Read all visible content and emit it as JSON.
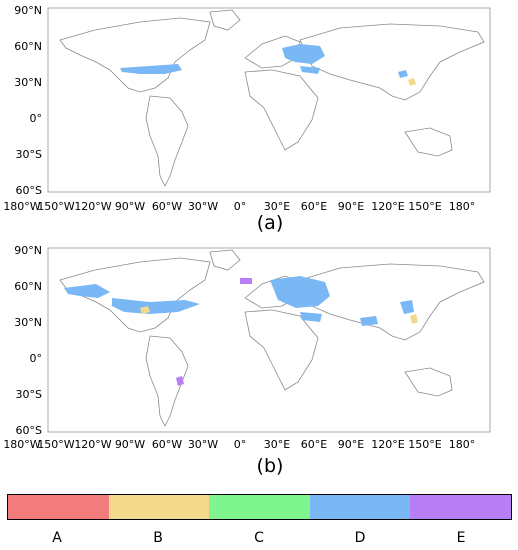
{
  "panels": [
    {
      "label": "(a)",
      "lat_ticks": [
        "90°N",
        "60°N",
        "30°N",
        "0°",
        "30°S",
        "60°S"
      ],
      "lon_ticks": [
        "180°W",
        "150°W",
        "120°W",
        "90°W",
        "60°W",
        "30°W",
        "0°",
        "30°E",
        "60°E",
        "90°E",
        "120°E",
        "150°E",
        "180°"
      ]
    },
    {
      "label": "(b)",
      "lat_ticks": [
        "90°N",
        "60°N",
        "30°N",
        "0°",
        "30°S",
        "60°S"
      ],
      "lon_ticks": [
        "180°W",
        "150°W",
        "120°W",
        "90°W",
        "60°W",
        "30°W",
        "0°",
        "30°E",
        "60°E",
        "90°E",
        "120°E",
        "150°E",
        "180°"
      ]
    }
  ],
  "legend": {
    "categories": [
      "A",
      "B",
      "C",
      "D",
      "E"
    ],
    "colors": [
      "#f47c7c",
      "#f3d98b",
      "#7ef58f",
      "#7ab7f5",
      "#b77ef5"
    ]
  }
}
